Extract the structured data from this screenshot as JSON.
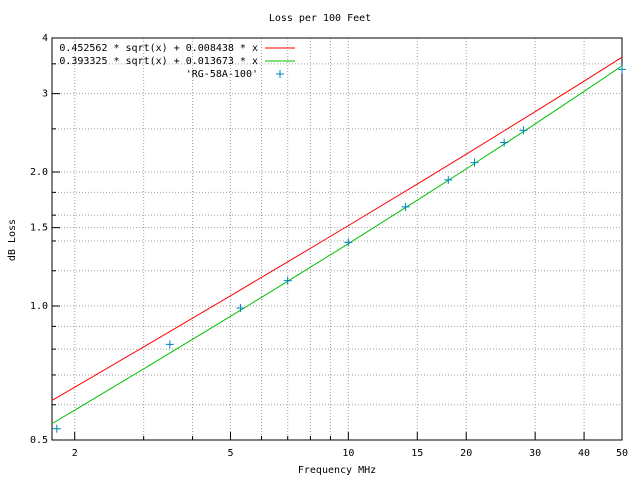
{
  "chart_data": {
    "type": "line",
    "title": "Loss per 100 Feet",
    "xlabel": "Frequency MHz",
    "ylabel": "dB Loss",
    "xscale": "log",
    "yscale": "log",
    "grid": true,
    "legend": "top-left",
    "xlim": [
      1.75,
      50
    ],
    "ylim": [
      0.5,
      4
    ],
    "xticks": [
      2,
      5,
      10,
      15,
      20,
      30,
      40,
      50
    ],
    "xminor": [
      3,
      4,
      6,
      7,
      8,
      9
    ],
    "yticks": [
      0.5,
      {
        "value": 1,
        "label": "1.0"
      },
      1.5,
      {
        "value": 2,
        "label": "2.0"
      },
      3,
      4
    ],
    "yminor": [
      0.6,
      0.7,
      0.8,
      0.9,
      1.2,
      1.4,
      1.6,
      1.8,
      2.5,
      3.5
    ],
    "series": [
      {
        "name": "0.452562 * sqrt(x) + 0.008438 * x",
        "color": "#ff0000",
        "style": "lines",
        "x": [
          1.75,
          2,
          3,
          5,
          7,
          10,
          15,
          20,
          30,
          40,
          50
        ],
        "values": [
          0.6135,
          0.6569,
          0.8092,
          1.0542,
          1.2565,
          1.5155,
          1.8794,
          2.1927,
          2.7319,
          3.1998,
          3.622
        ]
      },
      {
        "name": "0.393325 * sqrt(x) + 0.013673 * x",
        "color": "#00c000",
        "style": "lines",
        "x": [
          1.75,
          2,
          3,
          5,
          7,
          10,
          15,
          20,
          30,
          40,
          50
        ],
        "values": [
          0.5442,
          0.5835,
          0.7223,
          0.9479,
          1.1364,
          1.3805,
          1.7285,
          2.0325,
          2.5645,
          3.0345,
          3.465
        ]
      },
      {
        "name": "'RG-58A-100'",
        "color": "#0080c0",
        "style": "points",
        "x": [
          1.8,
          3.5,
          5.3,
          7,
          10,
          14,
          18,
          21,
          25,
          28,
          50
        ],
        "values": [
          0.53,
          0.82,
          0.99,
          1.14,
          1.39,
          1.67,
          1.92,
          2.1,
          2.33,
          2.48,
          3.4
        ]
      }
    ]
  }
}
